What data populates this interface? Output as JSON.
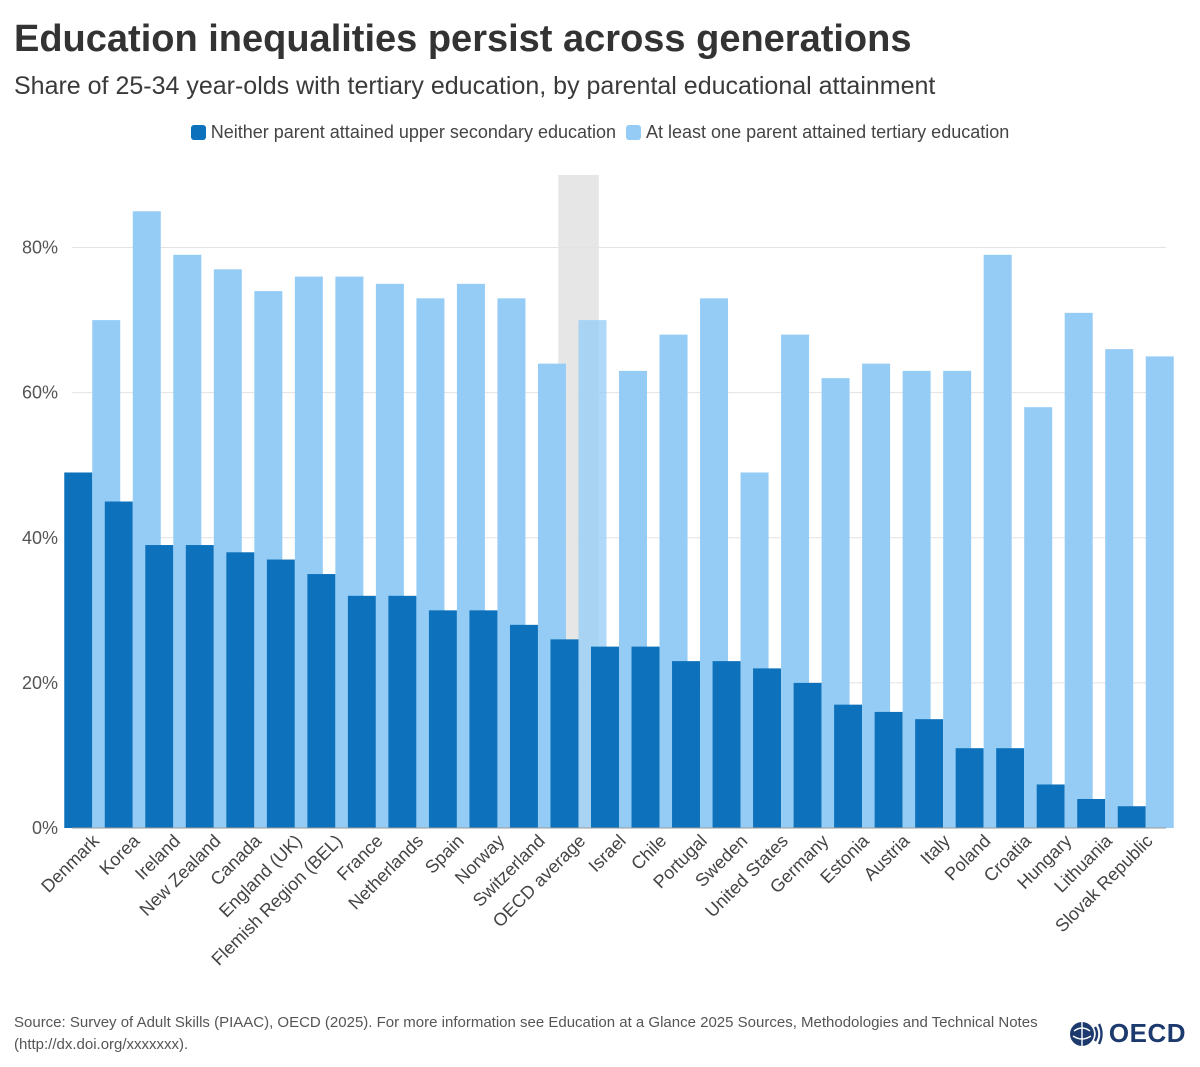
{
  "header": {
    "title": "Education inequalities persist across generations",
    "subtitle": "Share of 25-34 year-olds with tertiary education, by parental educational attainment"
  },
  "legend": [
    {
      "label": "Neither parent attained upper secondary education",
      "color": "#0d72bb"
    },
    {
      "label": "At least one parent attained tertiary education",
      "color": "#94ccf6"
    }
  ],
  "chart_data": {
    "type": "bar",
    "categories": [
      "Denmark",
      "Korea",
      "Ireland",
      "New Zealand",
      "Canada",
      "England (UK)",
      "Flemish Region (BEL)",
      "France",
      "Netherlands",
      "Spain",
      "Norway",
      "Switzerland",
      "OECD average",
      "Israel",
      "Chile",
      "Portugal",
      "Sweden",
      "United States",
      "Germany",
      "Estonia",
      "Austria",
      "Italy",
      "Poland",
      "Croatia",
      "Hungary",
      "Lithuania",
      "Slovak Republic"
    ],
    "series": [
      {
        "name": "Neither parent attained upper secondary education",
        "color": "#0d72bb",
        "values": [
          49,
          45,
          39,
          39,
          38,
          37,
          35,
          32,
          32,
          30,
          30,
          28,
          26,
          25,
          25,
          23,
          23,
          22,
          20,
          17,
          16,
          15,
          11,
          11,
          6,
          4,
          3
        ]
      },
      {
        "name": "At least one parent attained tertiary education",
        "color": "#94ccf6",
        "values": [
          70,
          85,
          79,
          77,
          74,
          76,
          76,
          75,
          73,
          75,
          73,
          64,
          70,
          63,
          68,
          73,
          49,
          68,
          62,
          64,
          63,
          63,
          79,
          58,
          71,
          66,
          65
        ]
      }
    ],
    "highlight": "OECD average",
    "highlight_color": "#e6e6e6",
    "y_ticks": [
      0,
      20,
      40,
      60,
      80
    ],
    "y_tick_labels": [
      "0%",
      "20%",
      "40%",
      "60%",
      "80%"
    ],
    "ylim": [
      0,
      90
    ],
    "grid": true
  },
  "footer": {
    "source": "Source: Survey of Adult Skills (PIAAC), OECD (2025). For more information see Education at a Glance 2025 Sources, Methodologies and Technical Notes (http://dx.doi.org/xxxxxxx).",
    "logo_text": "OECD"
  }
}
